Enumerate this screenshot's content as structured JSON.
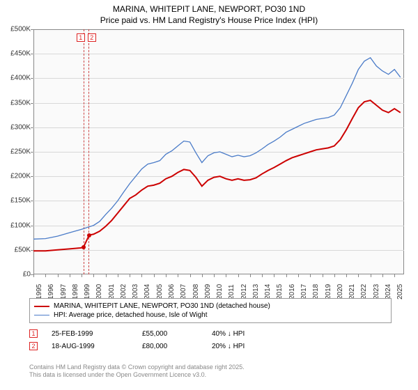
{
  "title": {
    "line1": "MARINA, WHITEPIT LANE, NEWPORT, PO30 1ND",
    "line2": "Price paid vs. HM Land Registry's House Price Index (HPI)"
  },
  "chart": {
    "type": "line",
    "background_color": "#fafafa",
    "grid_color": "#d8d8d8",
    "border_color": "#888888",
    "xlim": [
      1995,
      2025.8
    ],
    "ylim": [
      0,
      500000
    ],
    "y_ticks": [
      0,
      50000,
      100000,
      150000,
      200000,
      250000,
      300000,
      350000,
      400000,
      450000,
      500000
    ],
    "y_tick_labels": [
      "£0",
      "£50K",
      "£100K",
      "£150K",
      "£200K",
      "£250K",
      "£300K",
      "£350K",
      "£400K",
      "£450K",
      "£500K"
    ],
    "x_ticks": [
      1995,
      1996,
      1997,
      1998,
      1999,
      2000,
      2001,
      2002,
      2003,
      2004,
      2005,
      2006,
      2007,
      2008,
      2009,
      2010,
      2011,
      2012,
      2013,
      2014,
      2015,
      2016,
      2017,
      2018,
      2019,
      2020,
      2021,
      2022,
      2023,
      2024,
      2025
    ],
    "series": [
      {
        "name": "MARINA, WHITEPIT LANE, NEWPORT, PO30 1ND (detached house)",
        "color": "#cc0000",
        "width": 2,
        "points": [
          [
            1995,
            48000
          ],
          [
            1996,
            48000
          ],
          [
            1997,
            50000
          ],
          [
            1998,
            52000
          ],
          [
            1998.9,
            54000
          ],
          [
            1999.15,
            55000
          ],
          [
            1999.63,
            80000
          ],
          [
            2000,
            82000
          ],
          [
            2000.5,
            88000
          ],
          [
            2001,
            98000
          ],
          [
            2001.5,
            110000
          ],
          [
            2002,
            125000
          ],
          [
            2002.5,
            140000
          ],
          [
            2003,
            155000
          ],
          [
            2003.5,
            162000
          ],
          [
            2004,
            172000
          ],
          [
            2004.5,
            180000
          ],
          [
            2005,
            182000
          ],
          [
            2005.5,
            186000
          ],
          [
            2006,
            195000
          ],
          [
            2006.5,
            200000
          ],
          [
            2007,
            208000
          ],
          [
            2007.5,
            214000
          ],
          [
            2008,
            212000
          ],
          [
            2008.5,
            198000
          ],
          [
            2009,
            180000
          ],
          [
            2009.5,
            192000
          ],
          [
            2010,
            198000
          ],
          [
            2010.5,
            200000
          ],
          [
            2011,
            195000
          ],
          [
            2011.5,
            192000
          ],
          [
            2012,
            195000
          ],
          [
            2012.5,
            192000
          ],
          [
            2013,
            193000
          ],
          [
            2013.5,
            197000
          ],
          [
            2014,
            205000
          ],
          [
            2014.5,
            212000
          ],
          [
            2015,
            218000
          ],
          [
            2015.5,
            225000
          ],
          [
            2016,
            232000
          ],
          [
            2016.5,
            238000
          ],
          [
            2017,
            242000
          ],
          [
            2017.5,
            246000
          ],
          [
            2018,
            250000
          ],
          [
            2018.5,
            254000
          ],
          [
            2019,
            256000
          ],
          [
            2019.5,
            258000
          ],
          [
            2020,
            262000
          ],
          [
            2020.5,
            275000
          ],
          [
            2021,
            295000
          ],
          [
            2021.5,
            318000
          ],
          [
            2022,
            340000
          ],
          [
            2022.5,
            352000
          ],
          [
            2023,
            355000
          ],
          [
            2023.5,
            345000
          ],
          [
            2024,
            335000
          ],
          [
            2024.5,
            330000
          ],
          [
            2025,
            338000
          ],
          [
            2025.5,
            330000
          ]
        ]
      },
      {
        "name": "HPI: Average price, detached house, Isle of Wight",
        "color": "#4a7bc8",
        "width": 1.3,
        "points": [
          [
            1995,
            72000
          ],
          [
            1996,
            73000
          ],
          [
            1997,
            78000
          ],
          [
            1998,
            85000
          ],
          [
            1999,
            92000
          ],
          [
            2000,
            100000
          ],
          [
            2000.5,
            108000
          ],
          [
            2001,
            122000
          ],
          [
            2001.5,
            135000
          ],
          [
            2002,
            150000
          ],
          [
            2002.5,
            168000
          ],
          [
            2003,
            185000
          ],
          [
            2003.5,
            200000
          ],
          [
            2004,
            215000
          ],
          [
            2004.5,
            225000
          ],
          [
            2005,
            228000
          ],
          [
            2005.5,
            232000
          ],
          [
            2006,
            245000
          ],
          [
            2006.5,
            252000
          ],
          [
            2007,
            262000
          ],
          [
            2007.5,
            272000
          ],
          [
            2008,
            270000
          ],
          [
            2008.5,
            248000
          ],
          [
            2009,
            228000
          ],
          [
            2009.5,
            242000
          ],
          [
            2010,
            248000
          ],
          [
            2010.5,
            250000
          ],
          [
            2011,
            245000
          ],
          [
            2011.5,
            240000
          ],
          [
            2012,
            243000
          ],
          [
            2012.5,
            240000
          ],
          [
            2013,
            242000
          ],
          [
            2013.5,
            248000
          ],
          [
            2014,
            256000
          ],
          [
            2014.5,
            265000
          ],
          [
            2015,
            272000
          ],
          [
            2015.5,
            280000
          ],
          [
            2016,
            290000
          ],
          [
            2016.5,
            296000
          ],
          [
            2017,
            302000
          ],
          [
            2017.5,
            308000
          ],
          [
            2018,
            312000
          ],
          [
            2018.5,
            316000
          ],
          [
            2019,
            318000
          ],
          [
            2019.5,
            320000
          ],
          [
            2020,
            325000
          ],
          [
            2020.5,
            340000
          ],
          [
            2021,
            365000
          ],
          [
            2021.5,
            390000
          ],
          [
            2022,
            418000
          ],
          [
            2022.5,
            435000
          ],
          [
            2023,
            442000
          ],
          [
            2023.5,
            425000
          ],
          [
            2024,
            415000
          ],
          [
            2024.5,
            408000
          ],
          [
            2025,
            418000
          ],
          [
            2025.5,
            402000
          ]
        ]
      }
    ],
    "sale_markers": [
      {
        "n": "1",
        "x": 1999.15,
        "y": 55000,
        "color": "#cc0000"
      },
      {
        "n": "2",
        "x": 1999.63,
        "y": 80000,
        "color": "#cc0000"
      }
    ],
    "sale_band_color": "#cc4444"
  },
  "legend": {
    "items": [
      {
        "label": "MARINA, WHITEPIT LANE, NEWPORT, PO30 1ND (detached house)",
        "color": "#cc0000",
        "thick": 2
      },
      {
        "label": "HPI: Average price, detached house, Isle of Wight",
        "color": "#4a7bc8",
        "thick": 1
      }
    ]
  },
  "sales": [
    {
      "n": "1",
      "date": "25-FEB-1999",
      "price": "£55,000",
      "delta": "40% ↓ HPI"
    },
    {
      "n": "2",
      "date": "18-AUG-1999",
      "price": "£80,000",
      "delta": "20% ↓ HPI"
    }
  ],
  "footer": {
    "line1": "Contains HM Land Registry data © Crown copyright and database right 2025.",
    "line2": "This data is licensed under the Open Government Licence v3.0."
  }
}
